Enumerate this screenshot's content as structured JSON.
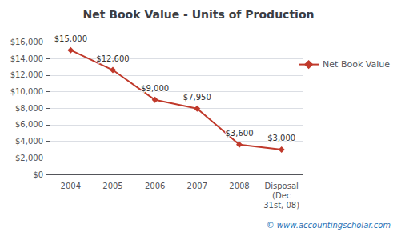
{
  "chart_data": {
    "type": "line",
    "title": "Net Book Value - Units of Production",
    "categories": [
      "2004",
      "2005",
      "2006",
      "2007",
      "2008",
      "Disposal\n(Dec\n31st, 08)"
    ],
    "series": [
      {
        "name": "Net Book Value",
        "color": "#c0392b",
        "marker": "diamond",
        "line_style": "solid",
        "values": [
          15000,
          12600,
          9000,
          7950,
          3600,
          3000
        ],
        "value_labels": [
          "$15,000",
          "$12,600",
          "$9,000",
          "$7,950",
          "$3,600",
          "$3,000"
        ]
      }
    ],
    "data_labels": true,
    "ylim": [
      0,
      17000
    ],
    "yticks": [
      {
        "value": 0,
        "label": "$0"
      },
      {
        "value": 2000,
        "label": "$2,000"
      },
      {
        "value": 4000,
        "label": "$4,000"
      },
      {
        "value": 6000,
        "label": "$6,000"
      },
      {
        "value": 8000,
        "label": "$8,000"
      },
      {
        "value": 10000,
        "label": "$10,000"
      },
      {
        "value": 12000,
        "label": "$12,000"
      },
      {
        "value": 14000,
        "label": "$14,000"
      },
      {
        "value": 16000,
        "label": "$16,000"
      }
    ],
    "grid": true,
    "legend": "right",
    "annotations": [
      "© www.accountingscholar.com"
    ]
  }
}
